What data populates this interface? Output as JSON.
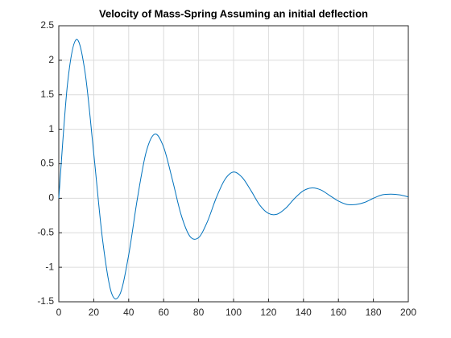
{
  "chart_data": {
    "type": "line",
    "title": "Velocity of Mass-Spring Assuming an initial deflection",
    "x": [
      0,
      5,
      10,
      15,
      20,
      25,
      30,
      35,
      40,
      45,
      50,
      55,
      60,
      65,
      70,
      75,
      80,
      85,
      90,
      95,
      100,
      105,
      110,
      115,
      120,
      125,
      130,
      135,
      140,
      145,
      150,
      155,
      160,
      165,
      170,
      175,
      180,
      185,
      190,
      195,
      200
    ],
    "series": [
      {
        "color": "#0072bd",
        "values": [
          0,
          1.66,
          2.3,
          1.83,
          0.65,
          -0.59,
          -1.36,
          -1.39,
          -0.82,
          0,
          0.67,
          0.93,
          0.74,
          0.27,
          -0.24,
          -0.55,
          -0.57,
          -0.34,
          0,
          0.27,
          0.38,
          0.3,
          0.11,
          -0.1,
          -0.22,
          -0.23,
          -0.14,
          0,
          0.11,
          0.15,
          0.12,
          0.04,
          -0.04,
          -0.09,
          -0.09,
          -0.06,
          0,
          0.05,
          0.06,
          0.05,
          0.02
        ]
      }
    ],
    "xlim": [
      0,
      200
    ],
    "xticks": [
      0,
      20,
      40,
      60,
      80,
      100,
      120,
      140,
      160,
      180,
      200
    ],
    "ylim": [
      -1.5,
      2.5
    ],
    "yticks": [
      -1.5,
      -1,
      -0.5,
      0,
      0.5,
      1,
      1.5,
      2,
      2.5
    ],
    "grid": true
  }
}
